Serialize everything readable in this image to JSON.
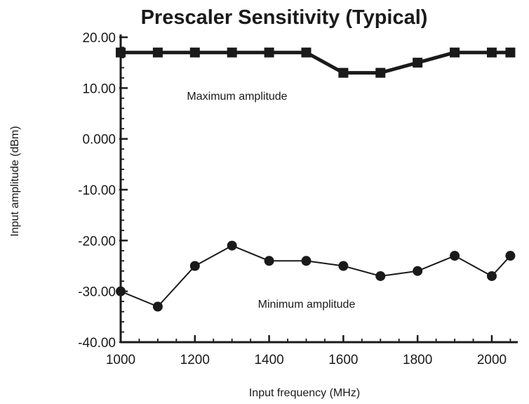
{
  "chart_data": {
    "type": "line",
    "title": "Prescaler Sensitivity (Typical)",
    "xlabel": "Input frequency (MHz)",
    "ylabel": "Input amplitude (dBm)",
    "xlim": [
      1000,
      2070
    ],
    "ylim": [
      -40,
      20
    ],
    "x_ticks": [
      1000,
      1200,
      1400,
      1600,
      1800,
      2000
    ],
    "x_tick_labels": [
      "1000",
      "1200",
      "1400",
      "1600",
      "1800",
      "2000"
    ],
    "y_ticks": [
      20,
      10,
      0,
      -10,
      -20,
      -30,
      -40
    ],
    "y_tick_labels": [
      "20.00",
      "10.00",
      "0.000",
      "-10.00",
      "-20.00",
      "-30.00",
      "-40.00"
    ],
    "grid": false,
    "legend": "none",
    "series": [
      {
        "name": "Maximum amplitude",
        "marker": "square",
        "x": [
          1000,
          1100,
          1200,
          1300,
          1400,
          1500,
          1600,
          1700,
          1800,
          1900,
          2000,
          2050
        ],
        "values": [
          17,
          17,
          17,
          17,
          17,
          17,
          13,
          13,
          15,
          17,
          17,
          17
        ]
      },
      {
        "name": "Minimum amplitude",
        "marker": "circle",
        "x": [
          1000,
          1100,
          1200,
          1300,
          1400,
          1500,
          1600,
          1700,
          1800,
          1900,
          2000,
          2050
        ],
        "values": [
          -30,
          -33,
          -25,
          -21,
          -24,
          -24,
          -25,
          -27,
          -26,
          -23,
          -27,
          -23
        ]
      }
    ],
    "annotations": [
      "Maximum amplitude",
      "Minimum amplitude"
    ],
    "colors": {
      "line": "#1a1a1a",
      "background": "#ffffff"
    }
  }
}
